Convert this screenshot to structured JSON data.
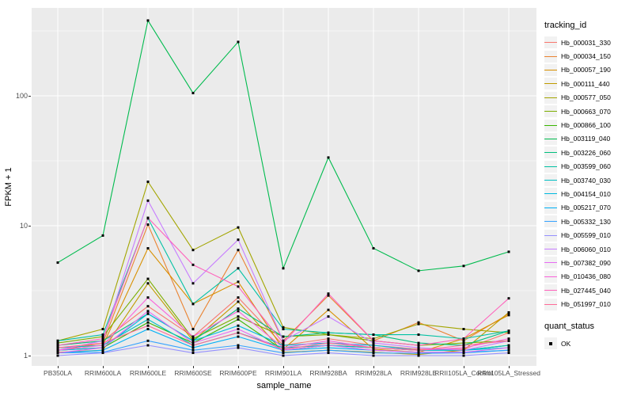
{
  "chart_data": {
    "type": "line",
    "title": "",
    "x_axis_label": "sample_name",
    "y_axis_label": "FPKM + 1",
    "y_scale": "log10",
    "y_ticks": [
      1,
      10,
      100
    ],
    "y_minor_gridlines": [
      3.162,
      31.62,
      316.2
    ],
    "ylim_log": [
      0.93,
      480
    ],
    "grid": "on",
    "panel_background": "#EBEBEB",
    "gridline_color": "#FFFFFF",
    "point_color": "#000000",
    "point_shape": "square",
    "legend_position": "right",
    "legend_title": "tracking_id",
    "quant_legend": {
      "title": "quant_status",
      "items": [
        "OK"
      ]
    },
    "categories": [
      "PB350LA",
      "RRIM600LA",
      "RRIM600LE",
      "RRIM600SE",
      "RRIM600PE",
      "RRIM901LA",
      "RRIM928BA",
      "RRIM928LA",
      "RRIM928LE",
      "RRII105LA_Control",
      "RRII105LA_Stressed"
    ],
    "series": [
      {
        "name": "Hb_000031_330",
        "color": "#F8766D",
        "values": [
          1.2,
          1.3,
          2.4,
          1.4,
          2.8,
          1.2,
          1.35,
          1.2,
          1.12,
          1.12,
          1.5
        ]
      },
      {
        "name": "Hb_000034_150",
        "color": "#EA8331",
        "values": [
          1.1,
          1.25,
          10.2,
          1.6,
          6.5,
          1.3,
          2.9,
          1.3,
          1.8,
          1.3,
          2.1
        ]
      },
      {
        "name": "Hb_000057_190",
        "color": "#D89000",
        "values": [
          1.15,
          1.2,
          6.7,
          2.5,
          3.7,
          1.12,
          2.25,
          1.12,
          1.06,
          1.35,
          2.05
        ]
      },
      {
        "name": "Hb_000111_440",
        "color": "#C09B00",
        "values": [
          1.06,
          1.1,
          3.6,
          1.3,
          2.6,
          1.06,
          1.1,
          1.06,
          1.02,
          1.1,
          2.15
        ]
      },
      {
        "name": "Hb_000577_050",
        "color": "#A3A500",
        "values": [
          1.3,
          1.6,
          21.8,
          6.5,
          9.7,
          1.65,
          1.45,
          1.35,
          1.75,
          1.6,
          1.5
        ]
      },
      {
        "name": "Hb_000663_070",
        "color": "#7CAE00",
        "values": [
          1.25,
          1.4,
          3.9,
          1.35,
          2.0,
          1.4,
          1.45,
          1.3,
          1.2,
          1.25,
          1.3
        ]
      },
      {
        "name": "Hb_000866_100",
        "color": "#39B600",
        "values": [
          1.1,
          1.15,
          1.8,
          1.25,
          1.9,
          1.1,
          1.2,
          1.15,
          1.1,
          1.1,
          1.2
        ]
      },
      {
        "name": "Hb_003119_040",
        "color": "#00BB4E",
        "values": [
          5.2,
          8.4,
          380,
          105,
          260,
          4.7,
          33.5,
          6.7,
          4.5,
          4.9,
          6.3
        ]
      },
      {
        "name": "Hb_003226_060",
        "color": "#00BF7D",
        "values": [
          1.2,
          1.3,
          2.1,
          1.3,
          2.3,
          1.4,
          1.5,
          1.45,
          1.25,
          1.2,
          1.55
        ]
      },
      {
        "name": "Hb_003599_060",
        "color": "#00C1A3",
        "values": [
          1.3,
          1.45,
          11.4,
          2.5,
          4.7,
          1.6,
          1.5,
          1.45,
          1.45,
          1.35,
          1.55
        ]
      },
      {
        "name": "Hb_003740_030",
        "color": "#00BFC4",
        "values": [
          1.15,
          1.2,
          1.9,
          1.2,
          1.5,
          1.15,
          1.2,
          1.15,
          1.1,
          1.1,
          1.2
        ]
      },
      {
        "name": "Hb_004154_010",
        "color": "#00BAE0",
        "values": [
          1.1,
          1.15,
          2.1,
          1.3,
          1.7,
          1.2,
          1.25,
          1.2,
          1.1,
          1.1,
          1.15
        ]
      },
      {
        "name": "Hb_005217_070",
        "color": "#00B0F6",
        "values": [
          1.05,
          1.1,
          1.6,
          1.15,
          1.4,
          1.1,
          1.15,
          1.1,
          1.06,
          1.06,
          1.1
        ]
      },
      {
        "name": "Hb_005332_130",
        "color": "#35A2FF",
        "values": [
          1.05,
          1.06,
          1.3,
          1.1,
          1.2,
          1.05,
          1.1,
          1.05,
          1.04,
          1.05,
          1.1
        ]
      },
      {
        "name": "Hb_005599_010",
        "color": "#9590FF",
        "values": [
          1.0,
          1.05,
          1.2,
          1.05,
          1.15,
          1.0,
          1.05,
          1.0,
          1.0,
          1.0,
          1.05
        ]
      },
      {
        "name": "Hb_006060_010",
        "color": "#C77CFF",
        "values": [
          1.1,
          1.3,
          15.6,
          3.6,
          7.8,
          1.3,
          2.0,
          1.25,
          1.15,
          1.1,
          1.3
        ]
      },
      {
        "name": "Hb_007382_090",
        "color": "#E76BF3",
        "values": [
          1.05,
          1.15,
          2.2,
          1.25,
          1.6,
          1.1,
          1.2,
          1.1,
          1.06,
          1.06,
          1.15
        ]
      },
      {
        "name": "Hb_010436_080",
        "color": "#FA62DB",
        "values": [
          1.1,
          1.2,
          2.8,
          1.4,
          2.2,
          1.15,
          1.3,
          1.15,
          1.1,
          1.15,
          1.35
        ]
      },
      {
        "name": "Hb_027445_040",
        "color": "#FF62BC",
        "values": [
          1.2,
          1.35,
          11.5,
          5.0,
          3.4,
          1.25,
          3.0,
          1.3,
          1.2,
          1.35,
          2.76
        ]
      },
      {
        "name": "Hb_051997_010",
        "color": "#FF6A98",
        "values": [
          1.15,
          1.25,
          1.7,
          1.2,
          1.5,
          1.12,
          1.25,
          1.15,
          1.1,
          1.2,
          1.3
        ]
      }
    ]
  }
}
